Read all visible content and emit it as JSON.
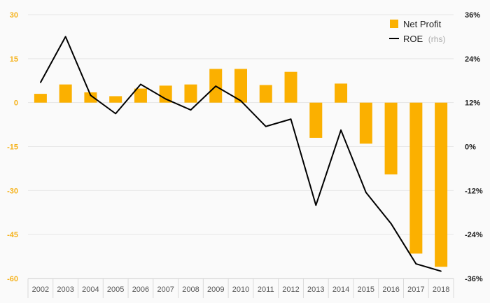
{
  "chart_data": {
    "type": "bar",
    "categories": [
      "2002",
      "2003",
      "2004",
      "2005",
      "2006",
      "2007",
      "2008",
      "2009",
      "2010",
      "2011",
      "2012",
      "2013",
      "2014",
      "2015",
      "2016",
      "2017",
      "2018"
    ],
    "series": [
      {
        "name": "Net Profit",
        "type": "bar",
        "axis": "left",
        "color": "#fbb000",
        "values": [
          3.0,
          6.2,
          3.5,
          2.2,
          4.8,
          5.8,
          6.2,
          11.5,
          11.5,
          6.0,
          10.5,
          -12.0,
          6.5,
          -14.0,
          -24.5,
          -51.5,
          -56.0
        ]
      },
      {
        "name": "ROE",
        "name_suffix": "(rhs)",
        "type": "line",
        "axis": "right",
        "color": "#000000",
        "values": [
          17.5,
          30.0,
          14.0,
          9.0,
          17.0,
          13.0,
          10.0,
          16.5,
          12.5,
          5.5,
          7.5,
          -16.0,
          4.5,
          -12.5,
          -21.0,
          -32.0,
          -34.0
        ]
      }
    ],
    "left_axis": {
      "ylim": [
        -60,
        30
      ],
      "ticks": [
        "30",
        "15",
        "0",
        "-15",
        "-30",
        "-45",
        "-60"
      ],
      "tick_values": [
        30,
        15,
        0,
        -15,
        -30,
        -45,
        -60
      ],
      "color": "#f5b21b"
    },
    "right_axis": {
      "ylim": [
        -36,
        36
      ],
      "ticks": [
        "36%",
        "24%",
        "12%",
        "0%",
        "-12%",
        "-24%",
        "-36%"
      ],
      "tick_values": [
        36,
        24,
        12,
        0,
        -12,
        -24,
        -36
      ],
      "color": "#222222"
    },
    "title": "",
    "xlabel": "",
    "ylabel": "",
    "grid": true,
    "legend_position": "top-right"
  }
}
